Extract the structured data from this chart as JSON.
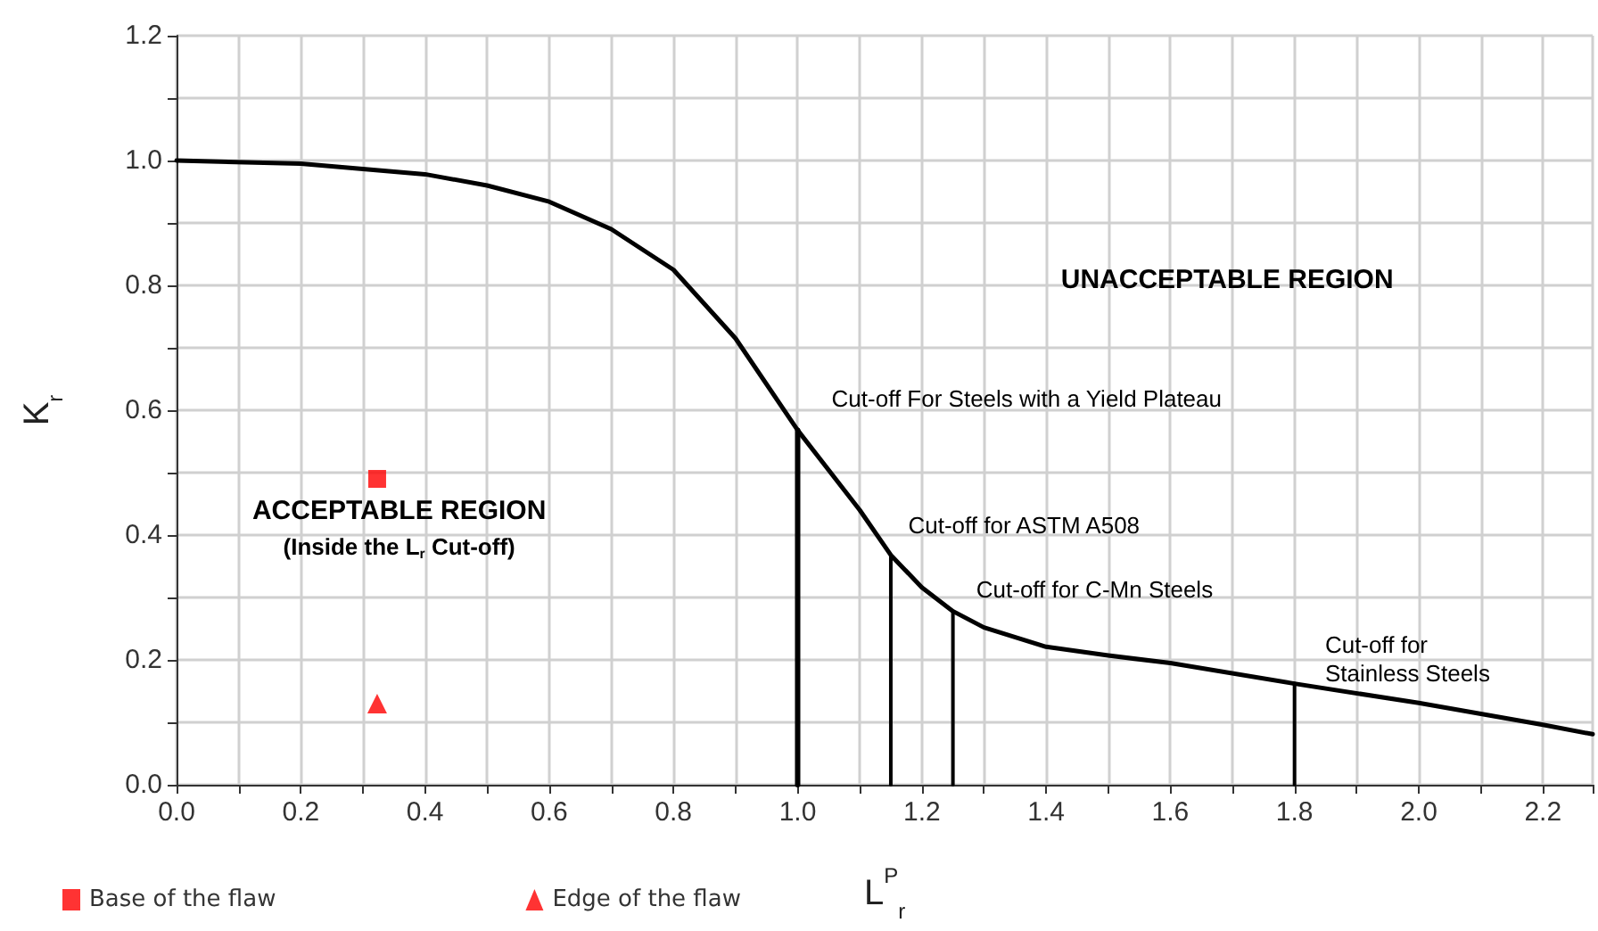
{
  "chart_data": {
    "type": "line",
    "xlabel": "L$^{P}$$_{r}$",
    "ylabel": "K$_{r}$",
    "xlim": [
      0,
      2.28
    ],
    "ylim": [
      0,
      1.2
    ],
    "xticks": [
      {
        "value": 0,
        "label": "0.0"
      },
      {
        "value": 0.1,
        "label": null
      },
      {
        "value": 0.2,
        "label": "0.2"
      },
      {
        "value": 0.3,
        "label": null
      },
      {
        "value": 0.4,
        "label": "0.4"
      },
      {
        "value": 0.5,
        "label": null
      },
      {
        "value": 0.6,
        "label": "0.6"
      },
      {
        "value": 0.7,
        "label": null
      },
      {
        "value": 0.8,
        "label": "0.8"
      },
      {
        "value": 0.9,
        "label": null
      },
      {
        "value": 1.0,
        "label": "1.0"
      },
      {
        "value": 1.1,
        "label": null
      },
      {
        "value": 1.2,
        "label": "1.2"
      },
      {
        "value": 1.3,
        "label": null
      },
      {
        "value": 1.4,
        "label": "1.4"
      },
      {
        "value": 1.5,
        "label": null
      },
      {
        "value": 1.6,
        "label": "1.6"
      },
      {
        "value": 1.7,
        "label": null
      },
      {
        "value": 1.8,
        "label": "1.8"
      },
      {
        "value": 1.9,
        "label": null
      },
      {
        "value": 2.0,
        "label": "2.0"
      },
      {
        "value": 2.1,
        "label": null
      },
      {
        "value": 2.2,
        "label": "2.2"
      }
    ],
    "yticks": [
      {
        "value": 0,
        "label": "0.0"
      },
      {
        "value": 0.1,
        "label": null
      },
      {
        "value": 0.2,
        "label": "0.2"
      },
      {
        "value": 0.3,
        "label": null
      },
      {
        "value": 0.4,
        "label": "0.4"
      },
      {
        "value": 0.5,
        "label": null
      },
      {
        "value": 0.6,
        "label": "0.6"
      },
      {
        "value": 0.7,
        "label": null
      },
      {
        "value": 0.8,
        "label": "0.8"
      },
      {
        "value": 0.9,
        "label": null
      },
      {
        "value": 1.0,
        "label": "1.0"
      },
      {
        "value": 1.1,
        "label": null
      },
      {
        "value": 1.2,
        "label": "1.2"
      }
    ],
    "grid": true,
    "legend": "bottom",
    "line_style": "solid",
    "series": [
      {
        "color": "#000000",
        "marker": "none",
        "x": [
          0,
          0.2,
          0.4,
          0.5,
          0.6,
          0.7,
          0.8,
          0.9,
          1.0,
          1.1,
          1.15,
          1.2,
          1.25,
          1.3,
          1.4,
          1.5,
          1.6,
          1.8,
          2.0,
          2.2,
          2.28
        ],
        "values": [
          1.0,
          0.995,
          0.978,
          0.96,
          0.934,
          0.89,
          0.825,
          0.715,
          0.568,
          0.44,
          0.368,
          0.316,
          0.278,
          0.252,
          0.221,
          0.207,
          0.195,
          0.162,
          0.131,
          0.096,
          0.081
        ]
      },
      {
        "color": "#000000",
        "marker": "none",
        "x": [
          1.0,
          1.0
        ],
        "values": [
          0,
          0.568
        ]
      },
      {
        "color": "#000000",
        "marker": "none",
        "x": [
          1.15,
          1.15
        ],
        "values": [
          0,
          0.368
        ]
      },
      {
        "color": "#000000",
        "marker": "none",
        "x": [
          1.25,
          1.25
        ],
        "values": [
          0,
          0.278
        ]
      },
      {
        "color": "#000000",
        "marker": "none",
        "x": [
          1.8,
          1.8
        ],
        "values": [
          0,
          0.162
        ]
      },
      {
        "type": "scatter",
        "name": "Base of the flaw",
        "color": "#ff0000",
        "marker": "square",
        "x": [
          0.323
        ],
        "values": [
          0.49
        ]
      },
      {
        "type": "scatter",
        "name": "Edge of the flaw",
        "color": "#ff0000",
        "marker": "triangle",
        "x": [
          0.323
        ],
        "values": [
          0.13
        ]
      }
    ],
    "annotations": [
      "UNACCEPTABLE REGION",
      "ACCEPTABLE REGION",
      "(Inside the L$_{r}$ Cut-off)",
      "Cut-off For Steels with a Yield Plateau",
      "Cut-off for ASTM A508",
      "Cut-off for C-Mn Steels",
      "Cut-off for\nStainless Steels"
    ]
  }
}
